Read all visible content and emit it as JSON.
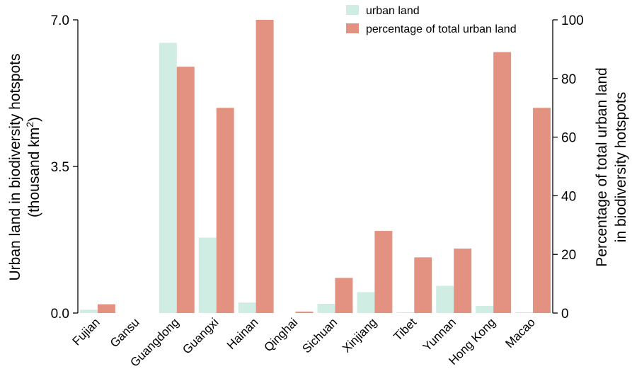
{
  "chart_data": {
    "type": "bar",
    "categories": [
      "Fujian",
      "Gansu",
      "Guangdong",
      "Guangxi",
      "Hainan",
      "Qinghai",
      "Sichuan",
      "Xinjiang",
      "Tibet",
      "Yunnan",
      "Hong Kong",
      "Macao"
    ],
    "series": [
      {
        "name": "urban land",
        "axis": "left",
        "color": "#cfede3",
        "values": [
          0.08,
          0.0,
          6.45,
          1.8,
          0.25,
          0.0,
          0.22,
          0.5,
          0.02,
          0.65,
          0.17,
          0.02
        ]
      },
      {
        "name": "percentage of total urban land",
        "axis": "right",
        "color": "#e39282",
        "values": [
          3,
          0,
          84,
          70,
          100,
          0.5,
          12,
          28,
          19,
          22,
          89,
          70
        ]
      }
    ],
    "ylabel_left_line1": "Urban land in biodiversity hotspots",
    "ylabel_left_line2_prefix": "(thousand km",
    "ylabel_left_line2_sup": "2",
    "ylabel_left_line2_suffix": ")",
    "ylabel_right_line1": "Percentage of total urban land",
    "ylabel_right_line2": "in biodiversity hotspots",
    "ylim_left": [
      0,
      7.0
    ],
    "yticks_left": [
      "0.0",
      "3.5",
      "7.0"
    ],
    "ylim_right": [
      0,
      100
    ],
    "yticks_right": [
      "0",
      "20",
      "40",
      "60",
      "80",
      "100"
    ],
    "grid": false,
    "legend_position": "top-right"
  }
}
